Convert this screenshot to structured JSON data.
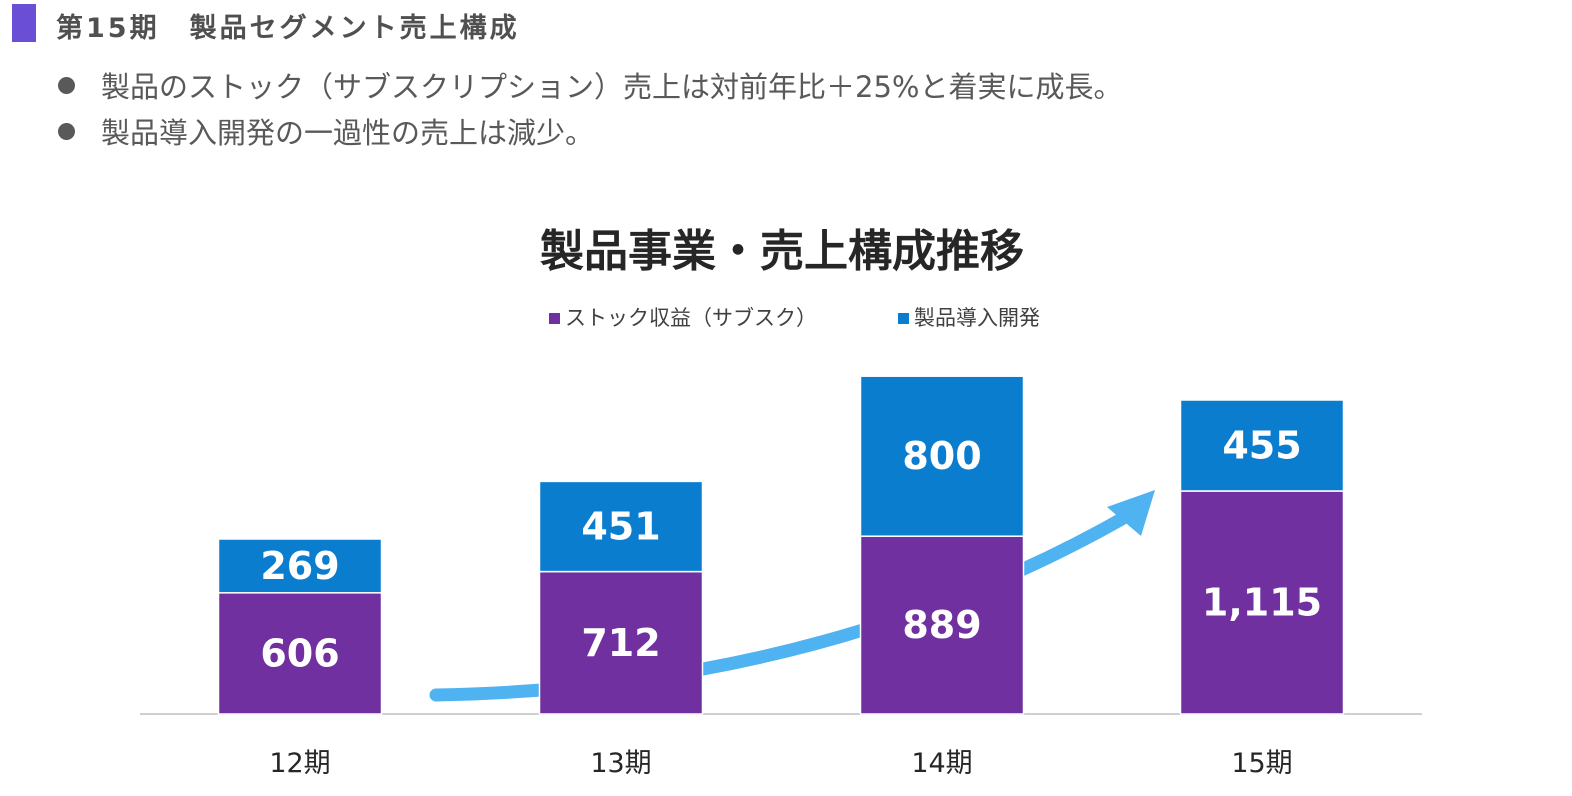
{
  "header": {
    "title": "第15期　製品セグメント売上構成"
  },
  "bullets": [
    "製品のストック（サブスクリプション）売上は対前年比＋25%と着実に成長。",
    "製品導入開発の一過性の売上は減少。"
  ],
  "colors": {
    "header_bar": "#6a4fd6",
    "stock": "#7030a0",
    "intro": "#0b7dcf",
    "arrow": "#4fb3f2"
  },
  "chart_data": {
    "type": "bar",
    "stacked": true,
    "title": "製品事業・売上構成推移",
    "categories": [
      "12期",
      "13期",
      "14期",
      "15期"
    ],
    "series": [
      {
        "name": "ストック収益（サブスク）",
        "values": [
          606,
          712,
          889,
          1115
        ],
        "labels": [
          "606",
          "712",
          "889",
          "1,115"
        ]
      },
      {
        "name": "製品導入開発",
        "values": [
          269,
          451,
          800,
          455
        ],
        "labels": [
          "269",
          "451",
          "800",
          "455"
        ]
      }
    ],
    "legend": "top-center",
    "grid": false,
    "ylim": [
      0,
      1700
    ],
    "annotation": "rising-trend-arrow"
  }
}
